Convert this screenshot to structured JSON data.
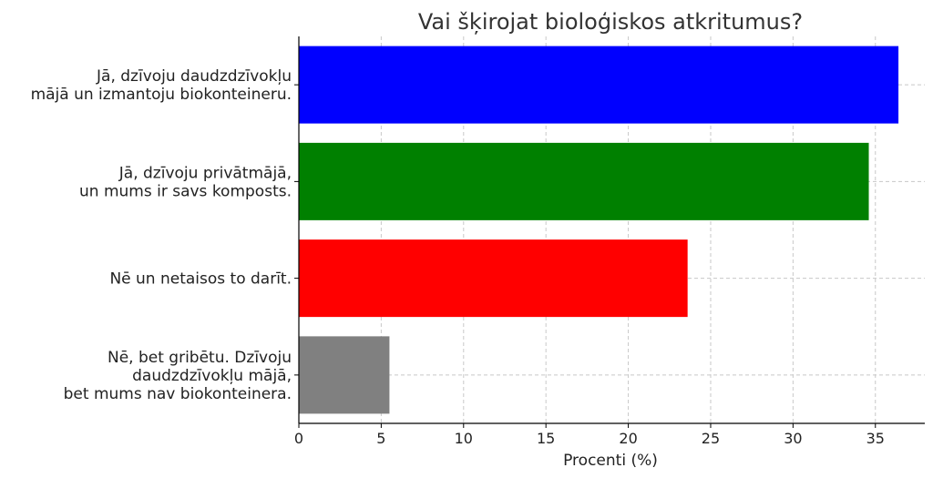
{
  "chart_data": {
    "type": "bar",
    "orientation": "horizontal",
    "title": "Vai šķirojat bioloģiskos atkritumus?",
    "xlabel": "Procenti (%)",
    "ylabel": "",
    "categories": [
      [
        "Jā, dzīvoju daudzdzīvokļu",
        "mājā un izmantoju biokonteineru."
      ],
      [
        "Jā, dzīvoju privātmājā,",
        "un mums ir savs komposts."
      ],
      [
        "Nē un netaisos to darīt."
      ],
      [
        "Nē, bet gribētu. Dzīvoju",
        "daudzdzīvokļu mājā,",
        "bet mums nav biokonteinera."
      ]
    ],
    "values": [
      36.4,
      34.6,
      23.6,
      5.5
    ],
    "colors": [
      "#0000ff",
      "#008000",
      "#ff0000",
      "#808080"
    ],
    "xlim": [
      0,
      38
    ],
    "xticks": [
      0,
      5,
      10,
      15,
      20,
      25,
      30,
      35
    ],
    "grid": true,
    "legend": "none"
  }
}
